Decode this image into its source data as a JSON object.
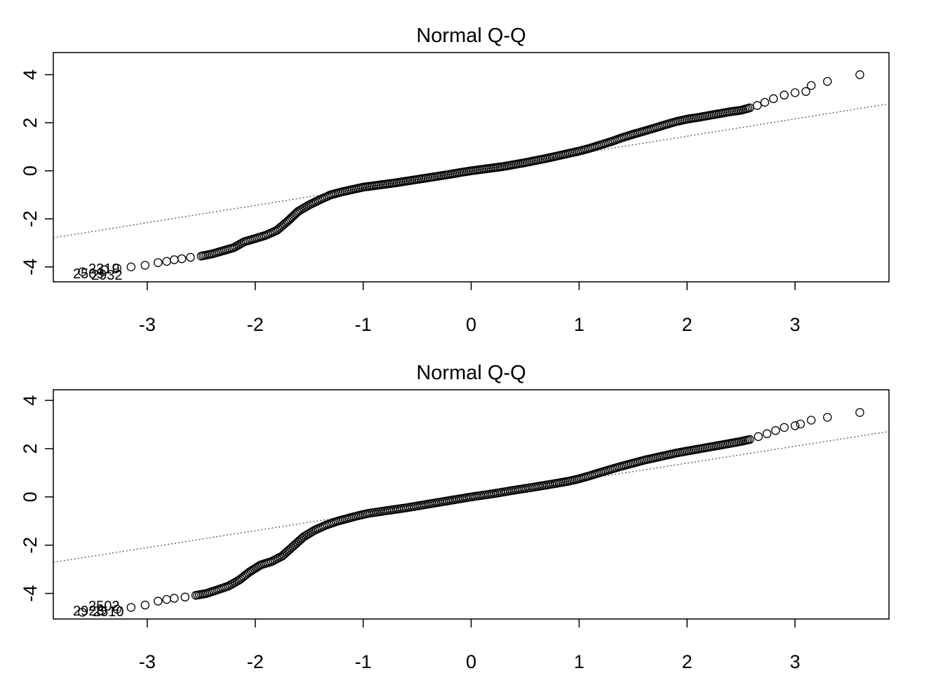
{
  "chart_data": [
    {
      "type": "scatter",
      "title": "Normal Q-Q",
      "xlabel": "",
      "ylabel": "",
      "xlim": [
        -3.87,
        3.87
      ],
      "ylim": [
        -4.62,
        4.92
      ],
      "xticks": [
        "-3",
        "-2",
        "-1",
        "0",
        "1",
        "2",
        "3"
      ],
      "yticks": [
        "-4",
        "-2",
        "0",
        "2",
        "4"
      ],
      "grid": false,
      "reference_line": {
        "style": "dotted",
        "intercept": 0.0,
        "slope": 0.72
      },
      "outlier_labels": [
        "2509",
        "2319",
        "2932"
      ],
      "points": [
        {
          "x": -3.6,
          "y": -4.2
        },
        {
          "x": -3.4,
          "y": -4.12
        },
        {
          "x": -3.28,
          "y": -4.05
        },
        {
          "x": -3.15,
          "y": -4.0
        },
        {
          "x": -3.02,
          "y": -3.93
        },
        {
          "x": -2.9,
          "y": -3.82
        },
        {
          "x": -2.82,
          "y": -3.77
        },
        {
          "x": -2.75,
          "y": -3.7
        },
        {
          "x": -2.68,
          "y": -3.66
        },
        {
          "x": -2.6,
          "y": -3.6
        },
        {
          "x": -2.5,
          "y": -3.55
        },
        {
          "x": -2.4,
          "y": -3.46
        },
        {
          "x": -2.3,
          "y": -3.33
        },
        {
          "x": -2.2,
          "y": -3.2
        },
        {
          "x": -2.1,
          "y": -2.95
        },
        {
          "x": -2.0,
          "y": -2.82
        },
        {
          "x": -1.9,
          "y": -2.68
        },
        {
          "x": -1.8,
          "y": -2.48
        },
        {
          "x": -1.7,
          "y": -2.1
        },
        {
          "x": -1.6,
          "y": -1.68
        },
        {
          "x": -1.5,
          "y": -1.42
        },
        {
          "x": -1.4,
          "y": -1.2
        },
        {
          "x": -1.3,
          "y": -1.0
        },
        {
          "x": -1.2,
          "y": -0.88
        },
        {
          "x": -1.1,
          "y": -0.78
        },
        {
          "x": -1.0,
          "y": -0.68
        },
        {
          "x": -0.9,
          "y": -0.62
        },
        {
          "x": -0.8,
          "y": -0.56
        },
        {
          "x": -0.7,
          "y": -0.5
        },
        {
          "x": -0.6,
          "y": -0.43
        },
        {
          "x": -0.5,
          "y": -0.36
        },
        {
          "x": -0.4,
          "y": -0.29
        },
        {
          "x": -0.3,
          "y": -0.22
        },
        {
          "x": -0.2,
          "y": -0.15
        },
        {
          "x": -0.1,
          "y": -0.07
        },
        {
          "x": 0.0,
          "y": 0.0
        },
        {
          "x": 0.1,
          "y": 0.06
        },
        {
          "x": 0.2,
          "y": 0.12
        },
        {
          "x": 0.3,
          "y": 0.18
        },
        {
          "x": 0.4,
          "y": 0.26
        },
        {
          "x": 0.5,
          "y": 0.34
        },
        {
          "x": 0.6,
          "y": 0.43
        },
        {
          "x": 0.7,
          "y": 0.52
        },
        {
          "x": 0.8,
          "y": 0.62
        },
        {
          "x": 0.9,
          "y": 0.72
        },
        {
          "x": 1.0,
          "y": 0.82
        },
        {
          "x": 1.1,
          "y": 0.94
        },
        {
          "x": 1.2,
          "y": 1.08
        },
        {
          "x": 1.3,
          "y": 1.22
        },
        {
          "x": 1.4,
          "y": 1.38
        },
        {
          "x": 1.5,
          "y": 1.52
        },
        {
          "x": 1.6,
          "y": 1.65
        },
        {
          "x": 1.7,
          "y": 1.78
        },
        {
          "x": 1.8,
          "y": 1.92
        },
        {
          "x": 1.9,
          "y": 2.05
        },
        {
          "x": 2.0,
          "y": 2.15
        },
        {
          "x": 2.1,
          "y": 2.22
        },
        {
          "x": 2.2,
          "y": 2.3
        },
        {
          "x": 2.3,
          "y": 2.38
        },
        {
          "x": 2.4,
          "y": 2.46
        },
        {
          "x": 2.5,
          "y": 2.52
        },
        {
          "x": 2.58,
          "y": 2.62
        },
        {
          "x": 2.65,
          "y": 2.72
        },
        {
          "x": 2.72,
          "y": 2.85
        },
        {
          "x": 2.8,
          "y": 3.0
        },
        {
          "x": 2.9,
          "y": 3.15
        },
        {
          "x": 3.0,
          "y": 3.25
        },
        {
          "x": 3.1,
          "y": 3.3
        },
        {
          "x": 3.15,
          "y": 3.55
        },
        {
          "x": 3.3,
          "y": 3.72
        },
        {
          "x": 3.6,
          "y": 4.0
        }
      ]
    },
    {
      "type": "scatter",
      "title": "Normal Q-Q",
      "xlabel": "",
      "ylabel": "",
      "xlim": [
        -3.87,
        3.87
      ],
      "ylim": [
        -5.06,
        4.44
      ],
      "xticks": [
        "-3",
        "-2",
        "-1",
        "0",
        "1",
        "2",
        "3"
      ],
      "yticks": [
        "-4",
        "-2",
        "0",
        "2",
        "4"
      ],
      "grid": false,
      "reference_line": {
        "style": "dotted",
        "intercept": 0.0,
        "slope": 0.7
      },
      "outlier_labels": [
        "2923",
        "2502",
        "2510"
      ],
      "points": [
        {
          "x": -3.6,
          "y": -4.78
        },
        {
          "x": -3.42,
          "y": -4.72
        },
        {
          "x": -3.28,
          "y": -4.65
        },
        {
          "x": -3.15,
          "y": -4.58
        },
        {
          "x": -3.02,
          "y": -4.48
        },
        {
          "x": -2.9,
          "y": -4.32
        },
        {
          "x": -2.82,
          "y": -4.25
        },
        {
          "x": -2.75,
          "y": -4.2
        },
        {
          "x": -2.65,
          "y": -4.15
        },
        {
          "x": -2.55,
          "y": -4.08
        },
        {
          "x": -2.45,
          "y": -4.0
        },
        {
          "x": -2.35,
          "y": -3.85
        },
        {
          "x": -2.25,
          "y": -3.7
        },
        {
          "x": -2.15,
          "y": -3.45
        },
        {
          "x": -2.05,
          "y": -3.1
        },
        {
          "x": -1.95,
          "y": -2.82
        },
        {
          "x": -1.85,
          "y": -2.68
        },
        {
          "x": -1.75,
          "y": -2.45
        },
        {
          "x": -1.65,
          "y": -2.05
        },
        {
          "x": -1.55,
          "y": -1.65
        },
        {
          "x": -1.45,
          "y": -1.38
        },
        {
          "x": -1.35,
          "y": -1.18
        },
        {
          "x": -1.25,
          "y": -1.02
        },
        {
          "x": -1.15,
          "y": -0.9
        },
        {
          "x": -1.05,
          "y": -0.78
        },
        {
          "x": -0.95,
          "y": -0.68
        },
        {
          "x": -0.8,
          "y": -0.58
        },
        {
          "x": -0.6,
          "y": -0.45
        },
        {
          "x": -0.4,
          "y": -0.3
        },
        {
          "x": -0.2,
          "y": -0.15
        },
        {
          "x": 0.0,
          "y": 0.0
        },
        {
          "x": 0.2,
          "y": 0.13
        },
        {
          "x": 0.4,
          "y": 0.28
        },
        {
          "x": 0.6,
          "y": 0.42
        },
        {
          "x": 0.8,
          "y": 0.57
        },
        {
          "x": 0.9,
          "y": 0.65
        },
        {
          "x": 1.0,
          "y": 0.75
        },
        {
          "x": 1.1,
          "y": 0.88
        },
        {
          "x": 1.2,
          "y": 1.02
        },
        {
          "x": 1.3,
          "y": 1.15
        },
        {
          "x": 1.4,
          "y": 1.28
        },
        {
          "x": 1.5,
          "y": 1.4
        },
        {
          "x": 1.6,
          "y": 1.52
        },
        {
          "x": 1.7,
          "y": 1.62
        },
        {
          "x": 1.8,
          "y": 1.72
        },
        {
          "x": 1.9,
          "y": 1.82
        },
        {
          "x": 2.0,
          "y": 1.9
        },
        {
          "x": 2.1,
          "y": 1.98
        },
        {
          "x": 2.2,
          "y": 2.06
        },
        {
          "x": 2.3,
          "y": 2.14
        },
        {
          "x": 2.4,
          "y": 2.22
        },
        {
          "x": 2.5,
          "y": 2.3
        },
        {
          "x": 2.58,
          "y": 2.38
        },
        {
          "x": 2.66,
          "y": 2.5
        },
        {
          "x": 2.74,
          "y": 2.62
        },
        {
          "x": 2.82,
          "y": 2.75
        },
        {
          "x": 2.9,
          "y": 2.88
        },
        {
          "x": 3.0,
          "y": 2.95
        },
        {
          "x": 3.05,
          "y": 3.02
        },
        {
          "x": 3.15,
          "y": 3.18
        },
        {
          "x": 3.3,
          "y": 3.3
        },
        {
          "x": 3.6,
          "y": 3.5
        }
      ]
    }
  ]
}
